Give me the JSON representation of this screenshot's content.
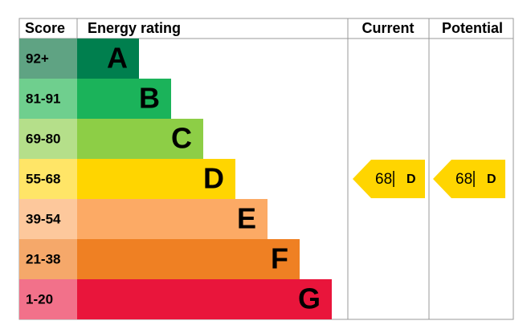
{
  "headers": [
    "Score",
    "Energy rating",
    "Current",
    "Potential"
  ],
  "bands": [
    {
      "score": "92+",
      "rating": "A"
    },
    {
      "score": "81-91",
      "rating": "B"
    },
    {
      "score": "69-80",
      "rating": "C"
    },
    {
      "score": "55-68",
      "rating": "D"
    },
    {
      "score": "39-54",
      "rating": "E"
    },
    {
      "score": "21-38",
      "rating": "F"
    },
    {
      "score": "1-20",
      "rating": "G"
    }
  ],
  "current": {
    "value": 68,
    "rating": "D"
  },
  "potential": {
    "value": 68,
    "rating": "D"
  }
}
